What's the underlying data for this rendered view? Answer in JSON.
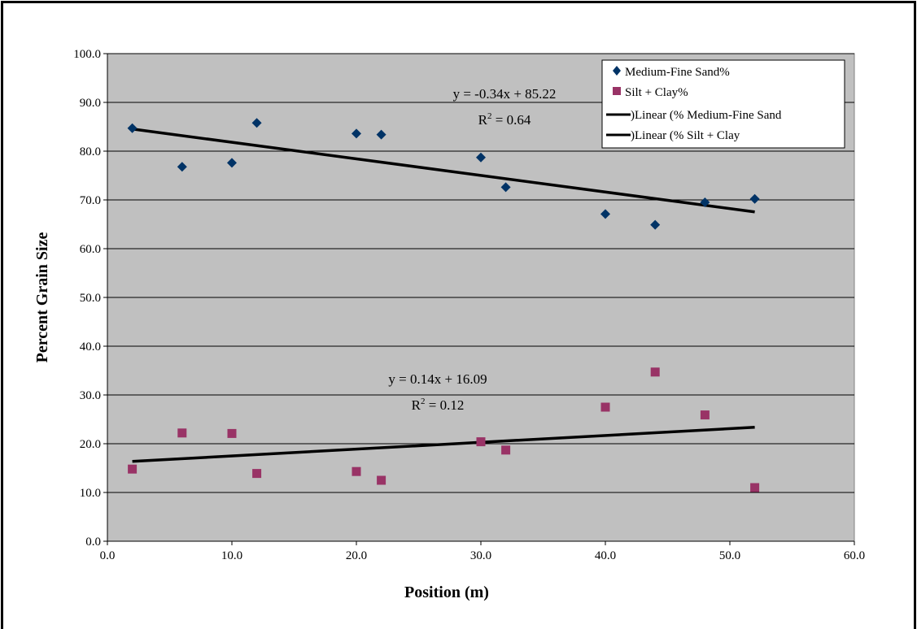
{
  "chart_data": {
    "type": "scatter",
    "xlabel": "Position (m)",
    "ylabel": "Percent Grain Size",
    "xlim": [
      0,
      60
    ],
    "ylim": [
      0,
      100
    ],
    "x_ticks": [
      "0.0",
      "10.0",
      "20.0",
      "30.0",
      "40.0",
      "50.0",
      "60.0"
    ],
    "y_ticks": [
      "0.0",
      "10.0",
      "20.0",
      "30.0",
      "40.0",
      "50.0",
      "60.0",
      "70.0",
      "80.0",
      "90.0",
      "100.0"
    ],
    "grid": true,
    "plot_background": "#c0c0c0",
    "legend_position": "top-right",
    "series": [
      {
        "name": "Medium-Fine Sand%",
        "marker": "diamond",
        "color": "#003366",
        "x": [
          2,
          6,
          10,
          12,
          20,
          22,
          30,
          32,
          40,
          44,
          48,
          52
        ],
        "y": [
          84.7,
          76.8,
          77.6,
          85.8,
          83.6,
          83.4,
          78.7,
          72.6,
          67.1,
          64.9,
          69.5,
          70.2
        ]
      },
      {
        "name": "Silt + Clay%",
        "marker": "square",
        "color": "#993366",
        "x": [
          2,
          6,
          10,
          12,
          20,
          22,
          30,
          32,
          40,
          44,
          48,
          52
        ],
        "y": [
          14.8,
          22.2,
          22.1,
          13.9,
          14.3,
          12.5,
          20.4,
          18.7,
          27.5,
          34.7,
          25.9,
          11.0
        ]
      }
    ],
    "trendlines": [
      {
        "name": ")Linear (% Medium-Fine Sand",
        "slope": -0.34,
        "intercept": 85.22,
        "x_range": [
          2,
          52
        ],
        "equation": "y = -0.34x + 85.22",
        "r2_label": "R",
        "r2_sup": "2",
        "r2_value": " = 0.64"
      },
      {
        "name": ")Linear (% Silt + Clay",
        "slope": 0.14,
        "intercept": 16.09,
        "x_range": [
          2,
          52
        ],
        "equation": "y = 0.14x + 16.09",
        "r2_label": "R",
        "r2_sup": "2",
        "r2_value": " = 0.12"
      }
    ]
  }
}
